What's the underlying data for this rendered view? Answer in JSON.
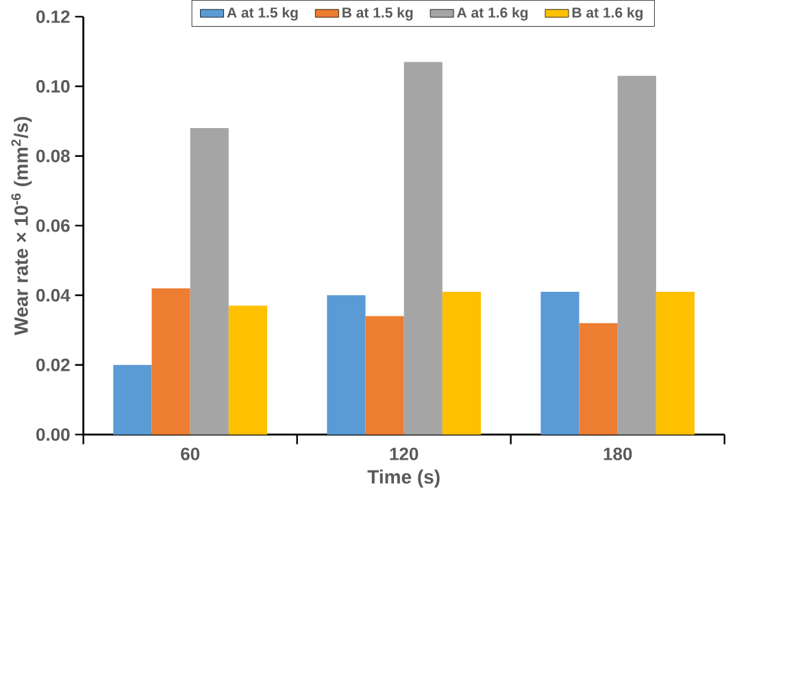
{
  "chart_data": {
    "type": "bar",
    "xlabel": "Time (s)",
    "ylabel": "Wear rate × 10$^{-6}$ (mm$^{2}$/s)",
    "categories": [
      "60",
      "120",
      "180"
    ],
    "series": [
      {
        "name": "A at 1.5 kg",
        "color": "#5b9bd5",
        "values": [
          0.02,
          0.04,
          0.041
        ]
      },
      {
        "name": "B at 1.5 kg",
        "color": "#ed7d31",
        "values": [
          0.042,
          0.034,
          0.032
        ]
      },
      {
        "name": "A at 1.6 kg",
        "color": "#a5a5a5",
        "values": [
          0.088,
          0.107,
          0.103
        ]
      },
      {
        "name": "B at 1.6 kg",
        "color": "#ffc000",
        "values": [
          0.037,
          0.041,
          0.041
        ]
      }
    ],
    "ylim": [
      0,
      0.12
    ],
    "yticks": [
      {
        "value": 0,
        "label": "0.00"
      },
      {
        "value": 0.02,
        "label": "0.02"
      },
      {
        "value": 0.04,
        "label": "0.04"
      },
      {
        "value": 0.06,
        "label": "0.06"
      },
      {
        "value": 0.08,
        "label": "0.08"
      },
      {
        "value": 0.1,
        "label": "0.10"
      },
      {
        "value": 0.12,
        "label": "0.12"
      }
    ],
    "grid": false,
    "legend": "top"
  }
}
